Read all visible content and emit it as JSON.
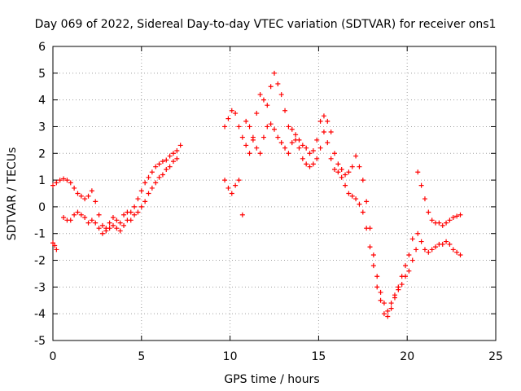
{
  "chart_data": {
    "type": "scatter",
    "title": "Day 069 of 2022, Sidereal Day-to-day VTEC variation (SDTVAR) for receiver ons1",
    "xlabel": "GPS time / hours",
    "ylabel": "SDTVAR / TECUs",
    "xlim": [
      0,
      25
    ],
    "ylim": [
      -5,
      6
    ],
    "xticks": [
      0,
      5,
      10,
      15,
      20,
      25
    ],
    "yticks": [
      -5,
      -4,
      -3,
      -2,
      -1,
      0,
      1,
      2,
      3,
      4,
      5,
      6
    ],
    "grid": true,
    "marker": "+",
    "series": [
      {
        "name": "segment-early-low",
        "color": "#ff0000",
        "x": [
          0.0,
          0.1,
          0.2
        ],
        "y": [
          -1.35,
          -1.45,
          -1.6
        ]
      },
      {
        "name": "segment-morning",
        "color": "#ff0000",
        "x": [
          0.0,
          0.2,
          0.4,
          0.6,
          0.8,
          1.0,
          1.2,
          1.4,
          1.6,
          1.8,
          2.0,
          2.2,
          2.4,
          2.6,
          2.8,
          3.0,
          3.2,
          3.4,
          3.6,
          3.8,
          4.0,
          4.2,
          4.4,
          4.6,
          4.8,
          5.0,
          5.2,
          5.4,
          5.6,
          5.8,
          6.0,
          6.2,
          6.4,
          6.6,
          6.8,
          7.0,
          7.2
        ],
        "y": [
          0.8,
          0.9,
          1.0,
          1.05,
          1.0,
          0.9,
          0.7,
          0.5,
          0.4,
          0.3,
          0.4,
          0.6,
          0.2,
          -0.3,
          -0.7,
          -0.8,
          -0.6,
          -0.4,
          -0.5,
          -0.6,
          -0.3,
          -0.2,
          -0.2,
          0.0,
          0.3,
          0.6,
          0.9,
          1.1,
          1.3,
          1.5,
          1.6,
          1.7,
          1.75,
          1.9,
          2.0,
          2.1,
          2.3
        ]
      },
      {
        "name": "segment-morning-lower",
        "color": "#ff0000",
        "x": [
          0.6,
          0.8,
          1.0,
          1.2,
          1.4,
          1.6,
          1.8,
          2.0,
          2.2,
          2.4,
          2.6,
          2.8,
          3.0,
          3.2,
          3.4,
          3.6,
          3.8,
          4.0,
          4.2,
          4.4,
          4.6,
          4.8,
          5.0,
          5.2,
          5.4,
          5.6,
          5.8,
          6.0,
          6.2,
          6.4,
          6.6,
          6.8,
          7.0
        ],
        "y": [
          -0.4,
          -0.5,
          -0.5,
          -0.3,
          -0.2,
          -0.3,
          -0.4,
          -0.6,
          -0.5,
          -0.6,
          -0.8,
          -1.0,
          -0.9,
          -0.8,
          -0.7,
          -0.8,
          -0.9,
          -0.7,
          -0.5,
          -0.5,
          -0.3,
          -0.2,
          0.0,
          0.2,
          0.5,
          0.7,
          0.9,
          1.1,
          1.2,
          1.4,
          1.5,
          1.7,
          1.8
        ]
      },
      {
        "name": "segment-afternoon",
        "color": "#ff0000",
        "x": [
          9.7,
          9.9,
          10.1,
          10.3,
          10.5,
          10.7,
          10.9,
          11.1,
          11.3,
          11.5,
          11.7,
          11.9,
          12.1,
          12.3,
          12.5,
          12.7,
          12.9,
          13.1,
          13.3,
          13.5,
          13.7,
          13.9,
          14.1,
          14.3,
          14.5,
          14.7,
          14.9,
          15.1,
          15.3,
          15.5,
          15.7,
          15.9,
          16.1,
          16.3,
          16.5,
          16.7,
          16.9,
          17.1,
          17.3,
          17.5,
          17.7,
          17.9,
          18.1,
          18.3,
          18.5,
          18.7,
          18.9,
          19.1,
          19.3,
          19.5,
          19.7,
          19.9,
          20.1,
          20.3
        ],
        "y": [
          3.0,
          3.3,
          3.6,
          3.5,
          3.0,
          2.6,
          2.3,
          2.0,
          2.5,
          3.5,
          4.2,
          4.0,
          3.8,
          4.5,
          5.0,
          4.6,
          4.2,
          3.6,
          3.0,
          2.9,
          2.7,
          2.5,
          2.3,
          2.2,
          2.0,
          2.1,
          2.5,
          3.2,
          3.4,
          3.2,
          2.8,
          2.0,
          1.6,
          1.4,
          1.2,
          1.3,
          1.5,
          1.9,
          1.5,
          1.0,
          0.2,
          -0.8,
          -1.8,
          -2.6,
          -3.2,
          -3.6,
          -3.9,
          -3.6,
          -3.3,
          -3.0,
          -2.6,
          -2.2,
          -1.8,
          -1.2
        ]
      },
      {
        "name": "segment-afternoon-lower",
        "color": "#ff0000",
        "x": [
          9.7,
          9.9,
          10.1,
          10.3,
          10.5,
          10.7,
          10.9,
          11.1,
          11.3,
          11.5,
          11.7,
          11.9,
          12.1,
          12.3,
          12.5,
          12.7,
          12.9,
          13.1,
          13.3,
          13.5,
          13.7,
          13.9,
          14.1,
          14.3,
          14.5,
          14.7,
          14.9,
          15.1,
          15.3,
          15.5,
          15.7,
          15.9,
          16.1,
          16.3,
          16.5,
          16.7,
          16.9,
          17.1,
          17.3,
          17.5,
          17.7,
          17.9,
          18.1,
          18.3,
          18.5,
          18.7,
          18.9,
          19.1,
          19.3,
          19.5,
          19.7,
          19.9,
          20.1,
          20.3,
          20.5
        ],
        "y": [
          1.0,
          0.7,
          0.5,
          0.8,
          1.0,
          -0.3,
          3.2,
          3.0,
          2.6,
          2.2,
          2.0,
          2.6,
          3.0,
          3.1,
          2.9,
          2.6,
          2.4,
          2.2,
          2.0,
          2.4,
          2.5,
          2.2,
          1.8,
          1.6,
          1.5,
          1.6,
          1.8,
          2.2,
          2.8,
          2.4,
          1.8,
          1.4,
          1.3,
          1.1,
          0.8,
          0.5,
          0.4,
          0.3,
          0.1,
          -0.2,
          -0.8,
          -1.5,
          -2.2,
          -3.0,
          -3.5,
          -4.0,
          -4.1,
          -3.8,
          -3.4,
          -3.1,
          -2.9,
          -2.6,
          -2.4,
          -2.0,
          -1.6
        ]
      },
      {
        "name": "segment-evening",
        "color": "#ff0000",
        "x": [
          20.6,
          20.8,
          21.0,
          21.2,
          21.4,
          21.6,
          21.8,
          22.0,
          22.2,
          22.4,
          22.6,
          22.8,
          23.0
        ],
        "y": [
          1.3,
          0.8,
          0.3,
          -0.2,
          -0.5,
          -0.6,
          -0.6,
          -0.7,
          -0.6,
          -0.5,
          -0.4,
          -0.35,
          -0.3
        ]
      },
      {
        "name": "segment-evening-lower",
        "color": "#ff0000",
        "x": [
          20.6,
          20.8,
          21.0,
          21.2,
          21.4,
          21.6,
          21.8,
          22.0,
          22.2,
          22.4,
          22.6,
          22.8,
          23.0
        ],
        "y": [
          -1.0,
          -1.3,
          -1.6,
          -1.7,
          -1.6,
          -1.5,
          -1.4,
          -1.4,
          -1.3,
          -1.4,
          -1.6,
          -1.7,
          -1.8
        ]
      }
    ]
  }
}
